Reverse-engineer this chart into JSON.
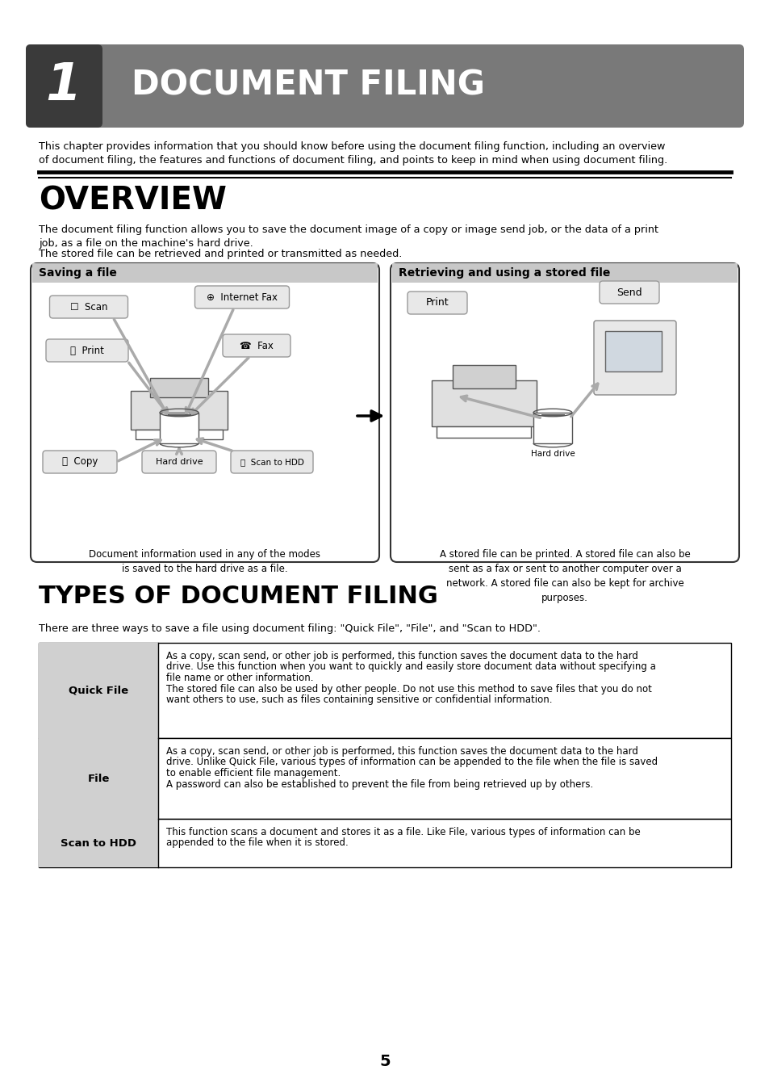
{
  "page_bg": "#ffffff",
  "header_bg": "#797979",
  "header_dark_bg": "#3a3a3a",
  "header_number": "1",
  "header_title": "DOCUMENT FILING",
  "chapter_intro": "This chapter provides information that you should know before using the document filing function, including an overview\nof document filing, the features and functions of document filing, and points to keep in mind when using document filing.",
  "overview_title": "OVERVIEW",
  "overview_text1": "The document filing function allows you to save the document image of a copy or image send job, or the data of a print\njob, as a file on the machine's hard drive.",
  "overview_text2": "The stored file can be retrieved and printed or transmitted as needed.",
  "saving_box_title": "Saving a file",
  "saving_caption": "Document information used in any of the modes\nis saved to the hard drive as a file.",
  "retrieving_box_title": "Retrieving and using a stored file",
  "retrieving_caption": "A stored file can be printed. A stored file can also be\nsent as a fax or sent to another computer over a\nnetwork. A stored file can also be kept for archive\npurposes.",
  "types_title": "TYPES OF DOCUMENT FILING",
  "types_intro": "There are three ways to save a file using document filing: \"Quick File\", \"File\", and \"Scan to HDD\".",
  "table_rows": [
    {
      "label": "Quick File",
      "text_lines": [
        "As a copy, scan send, or other job is performed, this function saves the document data to the hard",
        "drive. Use this function when you want to quickly and easily store document data without specifying a",
        "file name or other information.",
        "The stored file can also be used by other people. Do not use this method to save files that you do not",
        "want others to use, such as files containing sensitive or confidential information."
      ]
    },
    {
      "label": "File",
      "text_lines": [
        "As a copy, scan send, or other job is performed, this function saves the document data to the hard",
        "drive. Unlike Quick File, various types of information can be appended to the file when the file is saved",
        "to enable efficient file management.",
        "A password can also be established to prevent the file from being retrieved up by others."
      ]
    },
    {
      "label": "Scan to HDD",
      "text_lines": [
        "This function scans a document and stores it as a file. Like File, various types of information can be",
        "appended to the file when it is stored."
      ]
    }
  ],
  "page_number": "5",
  "label_col_bg": "#d0d0d0",
  "table_border": "#000000"
}
